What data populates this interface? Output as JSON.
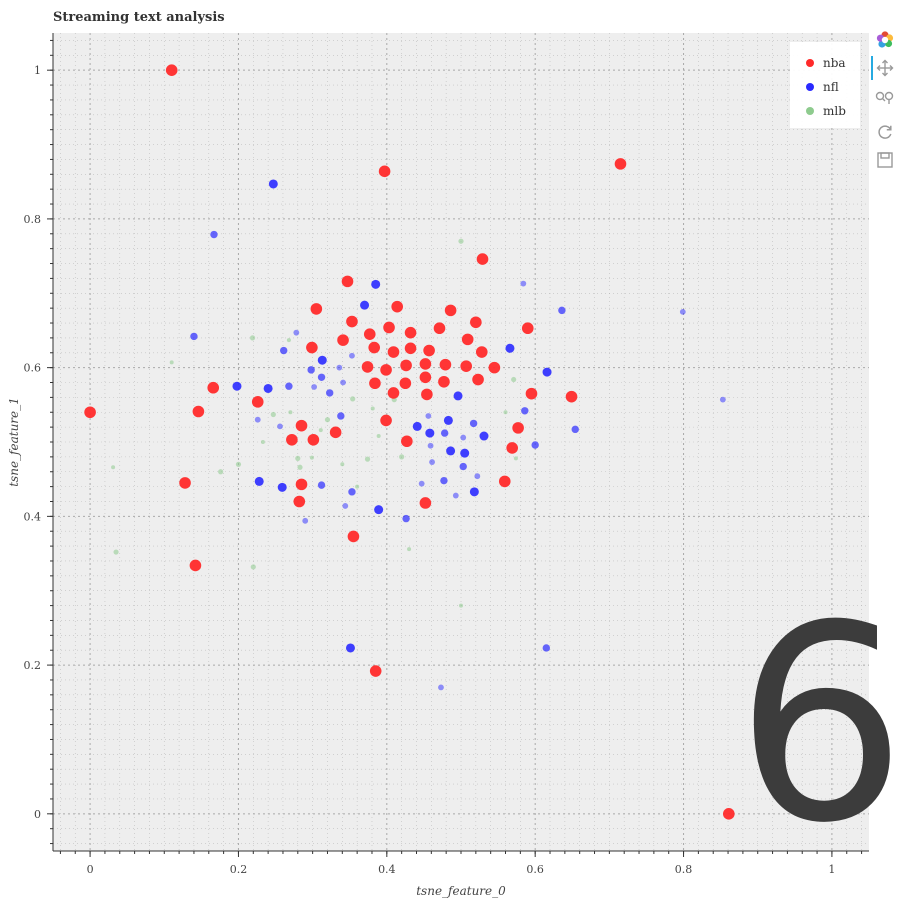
{
  "title": "Streaming text analysis",
  "overlay_digit": "6",
  "toolbar": {
    "tools": [
      "bokeh-logo-icon",
      "pan-icon",
      "box-zoom-icon",
      "reset-icon",
      "save-icon"
    ]
  },
  "colors": {
    "nba": "#ff2a2a",
    "nfl": "#2a2aff",
    "mlb": "#8ecb8e",
    "plot_bg": "#eeeeee",
    "grid": "#a9a9a9"
  },
  "chart_data": {
    "type": "scatter",
    "title": "Streaming text analysis",
    "xlabel": "tsne_feature_0",
    "ylabel": "tsne_feature_1",
    "xlim": [
      -0.05,
      1.05
    ],
    "ylim": [
      -0.05,
      1.05
    ],
    "x_ticks": [
      "0",
      "0.2",
      "0.4",
      "0.6",
      "0.8",
      "1"
    ],
    "y_ticks": [
      "0",
      "0.2",
      "0.4",
      "0.6",
      "0.8",
      "1"
    ],
    "grid": true,
    "legend_position": "top-right",
    "series": [
      {
        "name": "nba",
        "color": "#ff2a2a",
        "points": [
          [
            0.11,
            1.0
          ],
          [
            0.715,
            0.874
          ],
          [
            0.397,
            0.864
          ],
          [
            0.529,
            0.746
          ],
          [
            0.347,
            0.716
          ],
          [
            0.305,
            0.679
          ],
          [
            0.414,
            0.682
          ],
          [
            0.486,
            0.677
          ],
          [
            0.353,
            0.662
          ],
          [
            0.52,
            0.661
          ],
          [
            0.403,
            0.654
          ],
          [
            0.471,
            0.653
          ],
          [
            0.59,
            0.653
          ],
          [
            0.377,
            0.645
          ],
          [
            0.432,
            0.647
          ],
          [
            0.341,
            0.637
          ],
          [
            0.509,
            0.638
          ],
          [
            0.299,
            0.627
          ],
          [
            0.383,
            0.627
          ],
          [
            0.432,
            0.626
          ],
          [
            0.409,
            0.621
          ],
          [
            0.457,
            0.623
          ],
          [
            0.528,
            0.621
          ],
          [
            0.452,
            0.605
          ],
          [
            0.374,
            0.601
          ],
          [
            0.399,
            0.597
          ],
          [
            0.426,
            0.603
          ],
          [
            0.479,
            0.604
          ],
          [
            0.507,
            0.602
          ],
          [
            0.545,
            0.6
          ],
          [
            0.384,
            0.579
          ],
          [
            0.425,
            0.579
          ],
          [
            0.452,
            0.587
          ],
          [
            0.477,
            0.581
          ],
          [
            0.523,
            0.584
          ],
          [
            0.166,
            0.573
          ],
          [
            0.595,
            0.565
          ],
          [
            0.649,
            0.561
          ],
          [
            0.409,
            0.566
          ],
          [
            0.454,
            0.564
          ],
          [
            0.0,
            0.54
          ],
          [
            0.146,
            0.541
          ],
          [
            0.226,
            0.554
          ],
          [
            0.399,
            0.529
          ],
          [
            0.285,
            0.522
          ],
          [
            0.331,
            0.513
          ],
          [
            0.577,
            0.519
          ],
          [
            0.272,
            0.503
          ],
          [
            0.301,
            0.503
          ],
          [
            0.427,
            0.501
          ],
          [
            0.569,
            0.492
          ],
          [
            0.128,
            0.445
          ],
          [
            0.285,
            0.443
          ],
          [
            0.559,
            0.447
          ],
          [
            0.282,
            0.42
          ],
          [
            0.452,
            0.418
          ],
          [
            0.355,
            0.373
          ],
          [
            0.142,
            0.334
          ],
          [
            0.385,
            0.192
          ],
          [
            0.861,
            0.0
          ]
        ]
      },
      {
        "name": "nfl",
        "color": "#2a2aff",
        "points": [
          [
            0.247,
            0.847
          ],
          [
            0.167,
            0.779
          ],
          [
            0.584,
            0.713
          ],
          [
            0.385,
            0.712
          ],
          [
            0.636,
            0.677
          ],
          [
            0.799,
            0.675
          ],
          [
            0.37,
            0.684
          ],
          [
            0.14,
            0.642
          ],
          [
            0.278,
            0.647
          ],
          [
            0.566,
            0.626
          ],
          [
            0.261,
            0.623
          ],
          [
            0.353,
            0.616
          ],
          [
            0.313,
            0.61
          ],
          [
            0.298,
            0.597
          ],
          [
            0.336,
            0.6
          ],
          [
            0.616,
            0.594
          ],
          [
            0.312,
            0.587
          ],
          [
            0.341,
            0.58
          ],
          [
            0.24,
            0.572
          ],
          [
            0.268,
            0.575
          ],
          [
            0.302,
            0.574
          ],
          [
            0.198,
            0.575
          ],
          [
            0.323,
            0.566
          ],
          [
            0.853,
            0.557
          ],
          [
            0.496,
            0.562
          ],
          [
            0.586,
            0.542
          ],
          [
            0.456,
            0.535
          ],
          [
            0.483,
            0.529
          ],
          [
            0.338,
            0.535
          ],
          [
            0.226,
            0.53
          ],
          [
            0.441,
            0.521
          ],
          [
            0.517,
            0.525
          ],
          [
            0.256,
            0.521
          ],
          [
            0.458,
            0.512
          ],
          [
            0.478,
            0.512
          ],
          [
            0.503,
            0.506
          ],
          [
            0.531,
            0.508
          ],
          [
            0.654,
            0.517
          ],
          [
            0.459,
            0.495
          ],
          [
            0.486,
            0.488
          ],
          [
            0.6,
            0.496
          ],
          [
            0.461,
            0.473
          ],
          [
            0.505,
            0.485
          ],
          [
            0.503,
            0.467
          ],
          [
            0.522,
            0.454
          ],
          [
            0.228,
            0.447
          ],
          [
            0.477,
            0.448
          ],
          [
            0.447,
            0.444
          ],
          [
            0.259,
            0.439
          ],
          [
            0.353,
            0.433
          ],
          [
            0.493,
            0.428
          ],
          [
            0.518,
            0.433
          ],
          [
            0.312,
            0.442
          ],
          [
            0.344,
            0.414
          ],
          [
            0.389,
            0.409
          ],
          [
            0.426,
            0.397
          ],
          [
            0.29,
            0.394
          ],
          [
            0.351,
            0.223
          ],
          [
            0.615,
            0.223
          ],
          [
            0.473,
            0.17
          ]
        ]
      },
      {
        "name": "mlb",
        "color": "#8ecb8e",
        "points": [
          [
            0.5,
            0.77
          ],
          [
            0.11,
            0.607
          ],
          [
            0.219,
            0.64
          ],
          [
            0.268,
            0.637
          ],
          [
            0.571,
            0.584
          ],
          [
            0.031,
            0.466
          ],
          [
            0.176,
            0.46
          ],
          [
            0.233,
            0.5
          ],
          [
            0.28,
            0.478
          ],
          [
            0.299,
            0.479
          ],
          [
            0.283,
            0.466
          ],
          [
            0.574,
            0.478
          ],
          [
            0.374,
            0.477
          ],
          [
            0.311,
            0.516
          ],
          [
            0.354,
            0.558
          ],
          [
            0.381,
            0.545
          ],
          [
            0.247,
            0.537
          ],
          [
            0.389,
            0.508
          ],
          [
            0.41,
            0.557
          ],
          [
            0.43,
            0.356
          ],
          [
            0.22,
            0.332
          ],
          [
            0.5,
            0.28
          ],
          [
            0.035,
            0.352
          ],
          [
            0.34,
            0.47
          ],
          [
            0.2,
            0.47
          ],
          [
            0.56,
            0.54
          ],
          [
            0.32,
            0.53
          ],
          [
            0.27,
            0.54
          ],
          [
            0.42,
            0.48
          ],
          [
            0.36,
            0.44
          ]
        ]
      }
    ]
  }
}
